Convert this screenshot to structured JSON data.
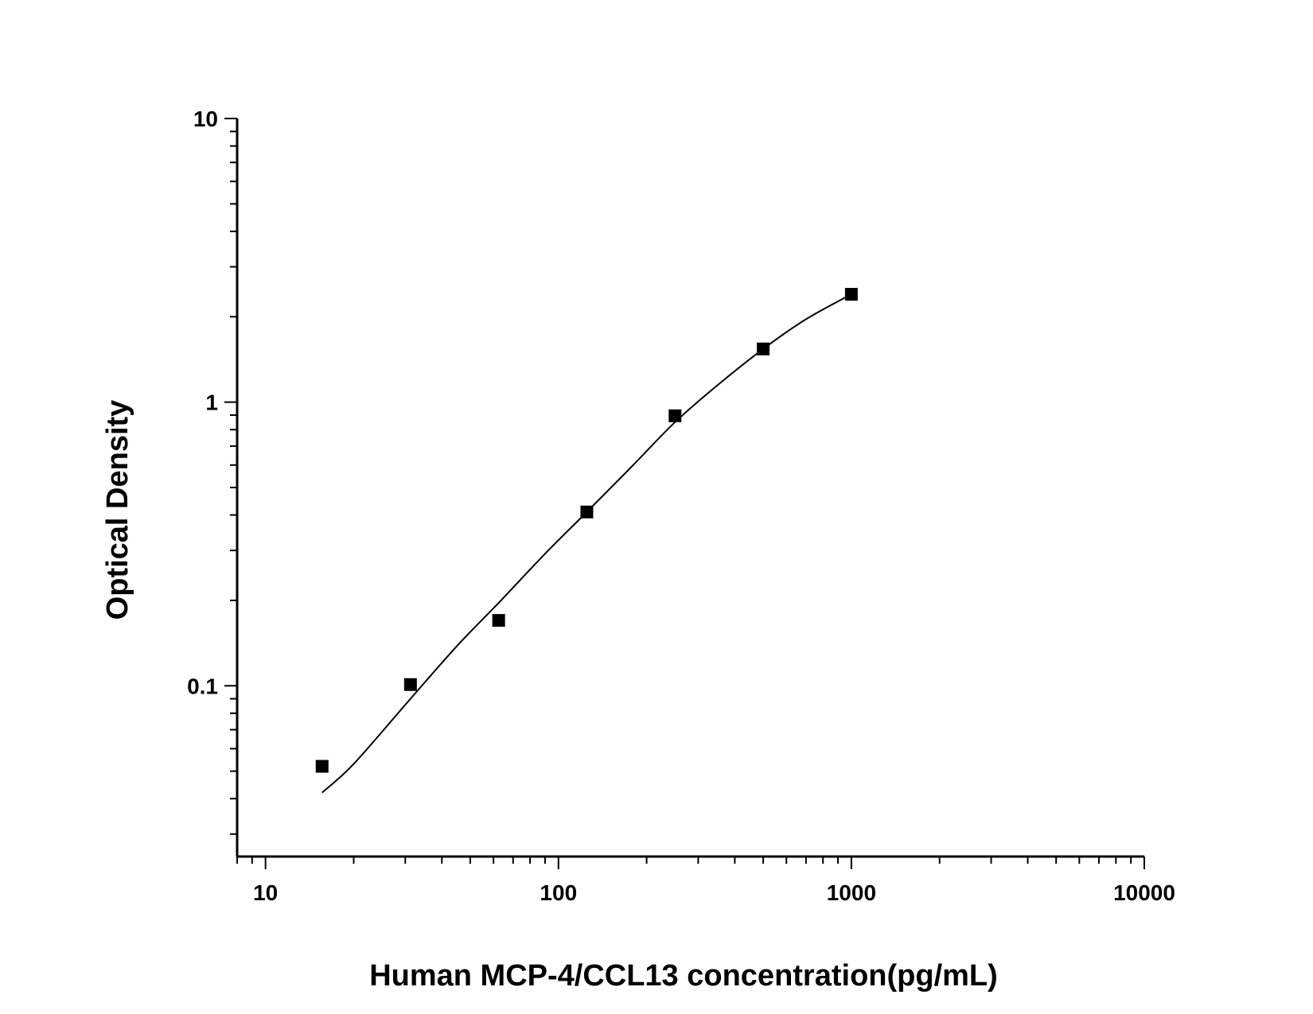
{
  "chart_data": {
    "type": "scatter",
    "title": "",
    "xlabel": "Human MCP-4/CCL13 concentration(pg/mL)",
    "ylabel": "Optical Density",
    "x_scale": "log",
    "y_scale": "log",
    "xlim": [
      8,
      10000
    ],
    "ylim": [
      0.025,
      10
    ],
    "x_ticks": [
      {
        "value": 10,
        "label": "10"
      },
      {
        "value": 100,
        "label": "100"
      },
      {
        "value": 1000,
        "label": "1000"
      },
      {
        "value": 10000,
        "label": "10000"
      }
    ],
    "y_ticks": [
      {
        "value": 0.1,
        "label": "0.1"
      },
      {
        "value": 1,
        "label": "1"
      },
      {
        "value": 10,
        "label": "10"
      }
    ],
    "grid": false,
    "legend": "none",
    "series": [
      {
        "points": [
          {
            "x": 15.6,
            "y": 0.052
          },
          {
            "x": 31.25,
            "y": 0.101
          },
          {
            "x": 62.5,
            "y": 0.17
          },
          {
            "x": 125,
            "y": 0.41
          },
          {
            "x": 250,
            "y": 0.895
          },
          {
            "x": 500,
            "y": 1.54
          },
          {
            "x": 1000,
            "y": 2.4
          }
        ],
        "fit_curve": [
          {
            "x": 15.6,
            "y": 0.042
          },
          {
            "x": 20,
            "y": 0.053
          },
          {
            "x": 31.25,
            "y": 0.09
          },
          {
            "x": 45,
            "y": 0.138
          },
          {
            "x": 62.5,
            "y": 0.196
          },
          {
            "x": 90,
            "y": 0.292
          },
          {
            "x": 125,
            "y": 0.41
          },
          {
            "x": 180,
            "y": 0.6
          },
          {
            "x": 250,
            "y": 0.85
          },
          {
            "x": 350,
            "y": 1.15
          },
          {
            "x": 500,
            "y": 1.54
          },
          {
            "x": 700,
            "y": 1.96
          },
          {
            "x": 1000,
            "y": 2.4
          }
        ],
        "marker": "square",
        "color": "#000000"
      }
    ]
  }
}
